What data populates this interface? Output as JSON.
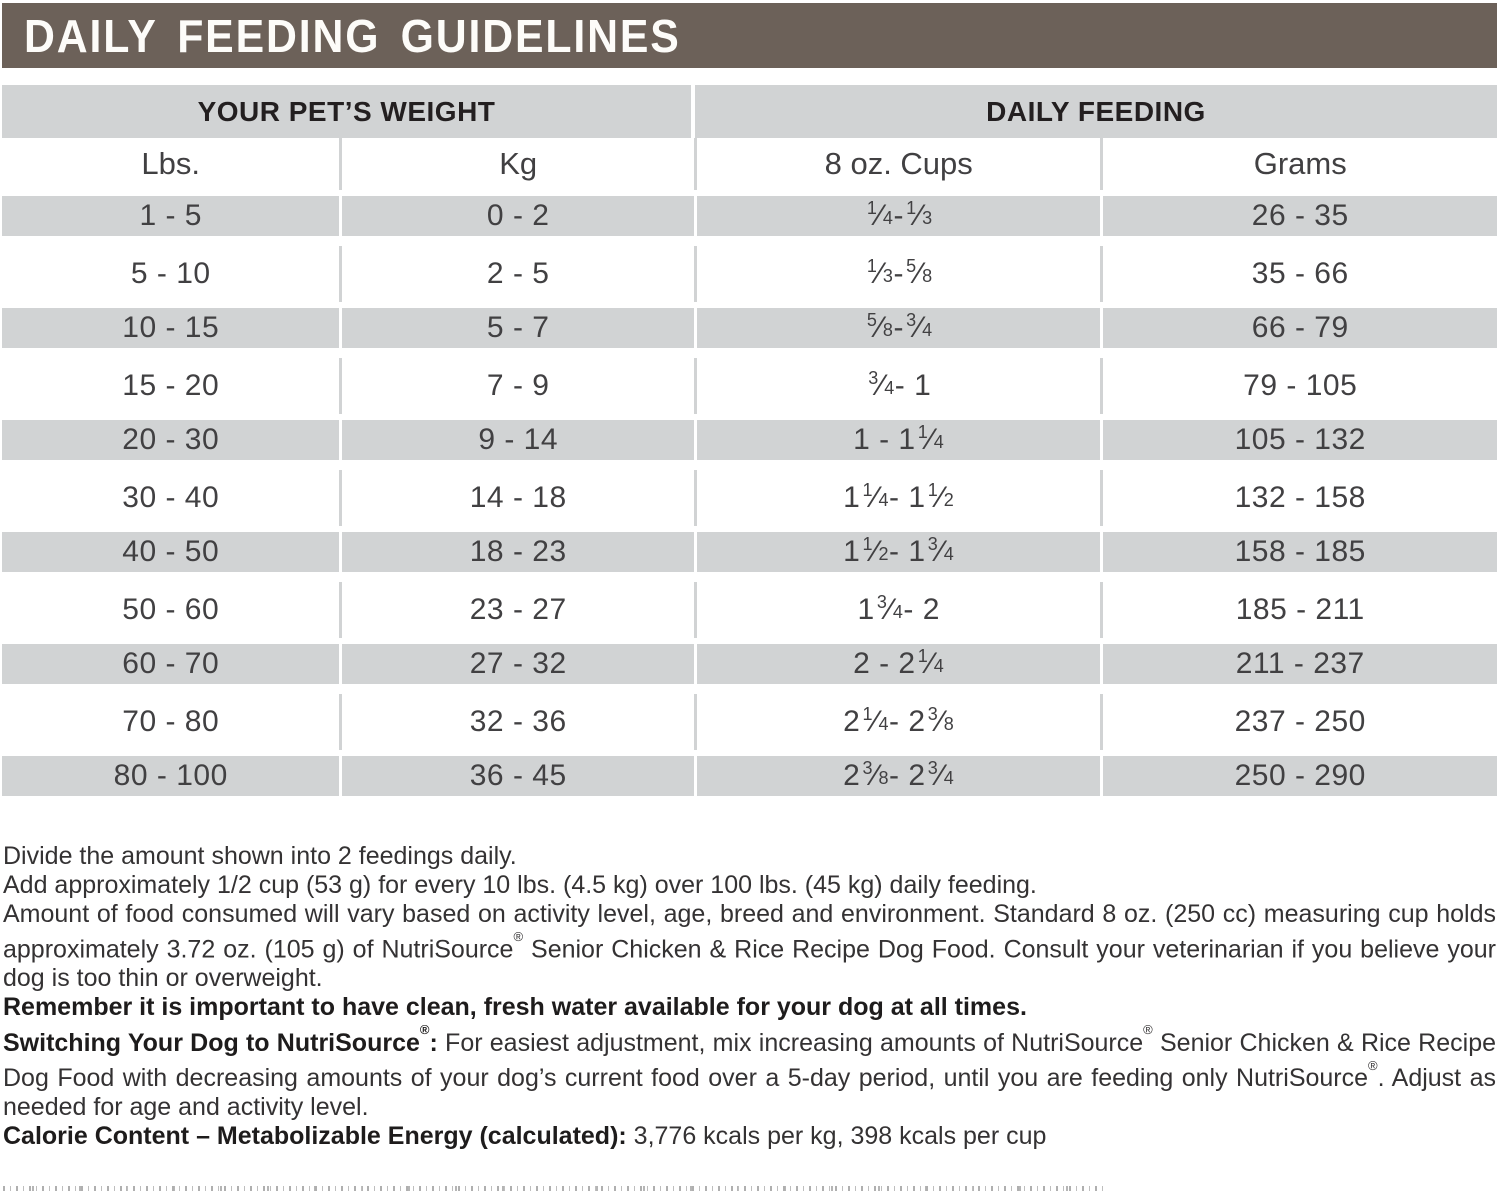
{
  "header": {
    "title": "DAILY FEEDING GUIDELINES"
  },
  "table": {
    "group_headers": [
      {
        "label": "YOUR PET’S WEIGHT"
      },
      {
        "label": "DAILY FEEDING"
      }
    ],
    "columns": [
      "Lbs.",
      "Kg",
      "8 oz. Cups",
      "Grams"
    ],
    "rows": [
      {
        "lbs": "1 - 5",
        "kg": "0 - 2",
        "cups": "1/4 - 1/3",
        "grams": "26 - 35"
      },
      {
        "lbs": "5 - 10",
        "kg": "2 - 5",
        "cups": "1/3 - 5/8",
        "grams": "35 - 66"
      },
      {
        "lbs": "10 - 15",
        "kg": "5 - 7",
        "cups": "5/8 - 3/4",
        "grams": "66 - 79"
      },
      {
        "lbs": "15 - 20",
        "kg": "7 - 9",
        "cups": "3/4 - 1",
        "grams": "79 - 105"
      },
      {
        "lbs": "20 - 30",
        "kg": "9 - 14",
        "cups": "1 - 1 1/4",
        "grams": "105 - 132"
      },
      {
        "lbs": "30 - 40",
        "kg": "14 - 18",
        "cups": "1 1/4 - 1 1/2",
        "grams": "132 - 158"
      },
      {
        "lbs": "40 - 50",
        "kg": "18 - 23",
        "cups": "1 1/2 - 1 3/4",
        "grams": "158 - 185"
      },
      {
        "lbs": "50 - 60",
        "kg": "23 - 27",
        "cups": "1 3/4 - 2",
        "grams": "185 - 211"
      },
      {
        "lbs": "60 - 70",
        "kg": "27 - 32",
        "cups": "2 - 2 1/4",
        "grams": "211 - 237"
      },
      {
        "lbs": "70 - 80",
        "kg": "32 - 36",
        "cups": "2 1/4 - 2 3/8",
        "grams": "237 - 250"
      },
      {
        "lbs": "80 - 100",
        "kg": "36 - 45",
        "cups": "2 3/8 - 2 3/4",
        "grams": "250 - 290"
      }
    ]
  },
  "notes": {
    "line1": "Divide the amount shown into 2 feedings daily.",
    "line2": "Add approximately 1/2 cup (53 g) for every 10 lbs. (4.5 kg) over 100 lbs. (45 kg) daily feeding.",
    "para1": "Amount of food consumed will vary based on activity level, age, breed and environment. Standard 8 oz. (250 cc) measuring cup holds approximately 3.72 oz. (105 g) of NutriSource® Senior Chicken & Rice Recipe Dog Food. Consult your veterinarian if you believe your dog is too thin or overweight.",
    "bold_line": "Remember it is important to have clean, fresh water available for your dog at all times.",
    "switching_lead": "Switching Your Dog to NutriSource®:",
    "switching_body": " For easiest adjustment, mix increasing amounts of NutriSource® Senior Chicken & Rice Recipe Dog Food with decreasing amounts of your dog’s current food over a 5-day period, until you are feeding only NutriSource®. Adjust as needed for age and activity level.",
    "calorie_lead": "Calorie Content – Metabolizable Energy (calculated):",
    "calorie_body": " 3,776 kcals per kg, 398 kcals per cup"
  },
  "colors": {
    "header_bar": "#6c6159",
    "stripe_gray": "#d1d3d4",
    "title_text": "#ffffff",
    "body_text": "#343233",
    "data_text": "#414042"
  }
}
